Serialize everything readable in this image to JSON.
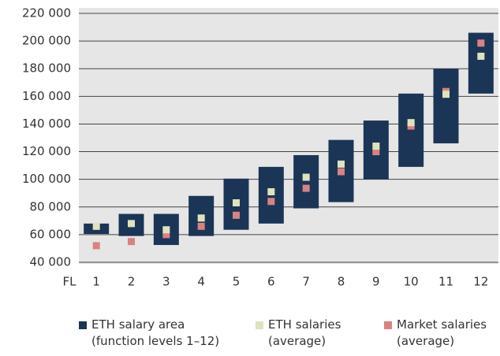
{
  "chart_data": {
    "type": "range-with-markers",
    "x_label": "FL",
    "categories": [
      "1",
      "2",
      "3",
      "4",
      "5",
      "6",
      "7",
      "8",
      "9",
      "10",
      "11",
      "12"
    ],
    "series": [
      {
        "name": "ETH salary area\n(function levels 1–12)",
        "color": "#1b3557",
        "low": [
          60500,
          59000,
          52500,
          59000,
          63500,
          68000,
          79000,
          83500,
          100000,
          109000,
          126000,
          162000
        ],
        "high": [
          68000,
          75000,
          75000,
          88000,
          100500,
          109000,
          117500,
          128500,
          142500,
          162000,
          180000,
          206000
        ]
      },
      {
        "name": "Market salaries\n(average)",
        "color": "#d98282",
        "values": [
          52000,
          55000,
          60000,
          66000,
          74000,
          84000,
          93500,
          105500,
          120000,
          138500,
          163500,
          198500
        ]
      },
      {
        "name": "ETH salaries\n(average)",
        "color": "#dfe3bd",
        "values": [
          66000,
          68000,
          63500,
          72000,
          83000,
          91000,
          101500,
          111000,
          124000,
          141000,
          161500,
          189000
        ]
      }
    ],
    "ylim": [
      40000,
      220000
    ],
    "yticks": [
      {
        "value": 40000,
        "label": "40 000"
      },
      {
        "value": 60000,
        "label": "60 000"
      },
      {
        "value": 80000,
        "label": "80 000"
      },
      {
        "value": 100000,
        "label": "100 000"
      },
      {
        "value": 120000,
        "label": "120 000"
      },
      {
        "value": 140000,
        "label": "140 000"
      },
      {
        "value": 160000,
        "label": "160 000"
      },
      {
        "value": 180000,
        "label": "180 000"
      },
      {
        "value": 200000,
        "label": "200 000"
      },
      {
        "value": 220000,
        "label": "220 000"
      }
    ],
    "grid": true
  }
}
